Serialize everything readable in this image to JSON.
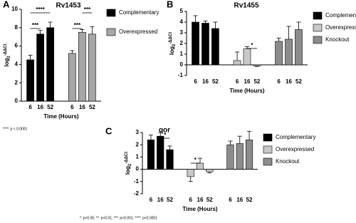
{
  "chart_data": [
    {
      "type": "bar",
      "panel": "A",
      "title": "Rv1453",
      "y_label": {
        "base": "log",
        "sub": "2",
        "sup": "-ΔΔCt"
      },
      "x_label": "Time (Hours)",
      "categories": [
        "6",
        "16",
        "52"
      ],
      "series": [
        {
          "name": "Complementary",
          "color": "#000000",
          "values": [
            4.5,
            7.3,
            8.0
          ],
          "errors": [
            0.5,
            0.4,
            0.6
          ]
        },
        {
          "name": "Overexpressed",
          "color": "#a6a6a6",
          "values": [
            5.2,
            7.5,
            7.3
          ],
          "errors": [
            0.3,
            0.3,
            0.8
          ]
        }
      ],
      "ylim": [
        0,
        10
      ],
      "yticks": [
        0,
        2,
        4,
        6,
        8,
        10
      ],
      "annotations": [
        "****",
        "***",
        "***",
        "***"
      ],
      "footnote": "****: p < 0.0001"
    },
    {
      "type": "bar",
      "panel": "B",
      "title": "Rv1455",
      "y_label": {
        "base": "log",
        "sub": "2",
        "sup": "-ΔΔCt"
      },
      "x_label": "Time (Hours)",
      "categories": [
        "6",
        "16",
        "52"
      ],
      "series": [
        {
          "name": "Complementary",
          "color": "#000000",
          "values": [
            4.0,
            3.9,
            3.4
          ],
          "errors": [
            0.6,
            0.2,
            0.6
          ]
        },
        {
          "name": "Overexpressed",
          "color": "#c8c8c8",
          "values": [
            0.4,
            1.5,
            -0.1
          ],
          "errors": [
            0.8,
            0.2,
            0.05
          ]
        },
        {
          "name": "Knockout",
          "color": "#8c8c8c",
          "values": [
            2.2,
            2.4,
            3.3
          ],
          "errors": [
            0.3,
            1.2,
            0.7
          ]
        }
      ],
      "ylim": [
        -1,
        5
      ],
      "yticks": [
        -1,
        0,
        1,
        2,
        3,
        4,
        5
      ],
      "annotations": [
        "*"
      ]
    },
    {
      "type": "bar",
      "panel": "C",
      "title": "qor",
      "y_label": {
        "base": "log",
        "sub": "2",
        "sup": "-ΔΔCt"
      },
      "x_label": "Time (Hours)",
      "categories": [
        "6",
        "16",
        "52"
      ],
      "series": [
        {
          "name": "Complementary",
          "color": "#000000",
          "values": [
            2.4,
            2.7,
            1.6
          ],
          "errors": [
            0.4,
            0.3,
            0.3
          ]
        },
        {
          "name": "Overexpressed",
          "color": "#c8c8c8",
          "values": [
            -0.6,
            0.5,
            -0.2
          ],
          "errors": [
            0.4,
            0.4,
            0.1
          ]
        },
        {
          "name": "Knockout",
          "color": "#8c8c8c",
          "values": [
            2.0,
            2.1,
            2.4
          ],
          "errors": [
            0.3,
            0.6,
            0.7
          ]
        }
      ],
      "ylim": [
        -2,
        3
      ],
      "yticks": [
        -2,
        -1,
        0,
        1,
        2,
        3
      ],
      "annotations": [
        "*",
        "*"
      ],
      "footnote": "*: p<0.05; **: p<0.01; ***: p<0.001; ****: p<0.0001"
    }
  ]
}
